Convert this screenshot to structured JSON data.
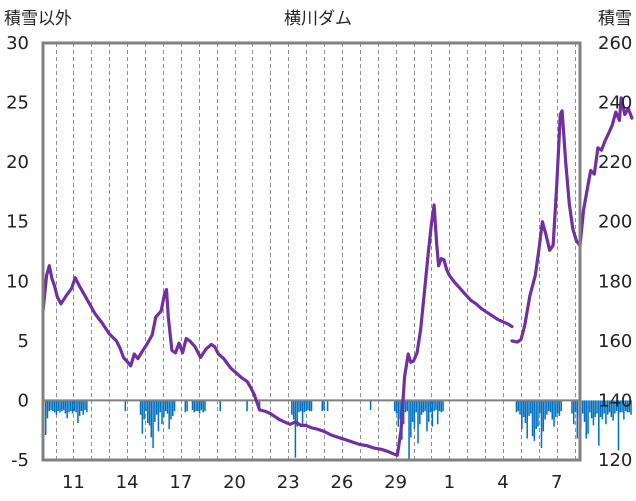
{
  "chart_data": {
    "type": "bar+line",
    "title": "横川ダム",
    "left_axis_label": "積雪以外",
    "right_axis_label": "積雪",
    "ylim_left": [
      -5,
      30
    ],
    "ylim_right": [
      120,
      260
    ],
    "left_ticks": [
      -5,
      0,
      5,
      10,
      15,
      20,
      25,
      30
    ],
    "right_ticks": [
      120,
      140,
      160,
      180,
      200,
      220,
      240,
      260
    ],
    "x_tick_labels": [
      "11",
      "14",
      "17",
      "20",
      "23",
      "26",
      "29",
      "1",
      "4",
      "7"
    ],
    "x_tick_days": [
      2,
      5,
      8,
      11,
      14,
      17,
      20,
      23,
      26,
      29
    ],
    "x_range": [
      0.3,
      30.3
    ],
    "grid": "vertical-dashed",
    "colors": {
      "line": "#7030a0",
      "bars": "#0070c0",
      "frame": "#808080",
      "zero": "#808080",
      "grid": "#909090"
    },
    "line_series": {
      "axis": "left",
      "segments": [
        [
          [
            0.3,
            7.5
          ],
          [
            0.5,
            10.5
          ],
          [
            0.65,
            11.3
          ],
          [
            0.8,
            10.2
          ],
          [
            0.95,
            9.6
          ],
          [
            1.1,
            8.7
          ],
          [
            1.3,
            8.1
          ],
          [
            1.6,
            8.8
          ],
          [
            1.9,
            9.4
          ],
          [
            2.1,
            10.3
          ],
          [
            2.3,
            9.7
          ],
          [
            2.6,
            8.9
          ],
          [
            2.9,
            8.1
          ],
          [
            3.2,
            7.3
          ],
          [
            3.6,
            6.5
          ],
          [
            4.0,
            5.6
          ],
          [
            4.4,
            5.0
          ],
          [
            4.6,
            4.4
          ],
          [
            4.8,
            3.6
          ],
          [
            5.1,
            3.1
          ],
          [
            5.2,
            2.9
          ],
          [
            5.4,
            3.9
          ],
          [
            5.6,
            3.5
          ],
          [
            5.8,
            4.0
          ],
          [
            6.1,
            4.7
          ],
          [
            6.4,
            5.5
          ],
          [
            6.6,
            7.0
          ],
          [
            6.9,
            7.5
          ],
          [
            7.1,
            9.0
          ],
          [
            7.2,
            9.3
          ],
          [
            7.3,
            7.0
          ],
          [
            7.5,
            4.2
          ],
          [
            7.7,
            4.0
          ],
          [
            7.9,
            4.8
          ],
          [
            8.1,
            4.0
          ],
          [
            8.3,
            5.2
          ],
          [
            8.5,
            5.0
          ],
          [
            8.8,
            4.5
          ],
          [
            9.1,
            3.6
          ],
          [
            9.4,
            4.3
          ],
          [
            9.7,
            4.7
          ],
          [
            9.9,
            4.5
          ],
          [
            10.1,
            3.9
          ],
          [
            10.4,
            3.5
          ],
          [
            10.8,
            2.7
          ],
          [
            11.1,
            2.3
          ],
          [
            11.4,
            1.9
          ],
          [
            11.7,
            1.6
          ],
          [
            11.9,
            1.1
          ],
          [
            12.1,
            0.5
          ],
          [
            12.4,
            -0.8
          ],
          [
            12.7,
            -0.9
          ],
          [
            13.0,
            -1.1
          ],
          [
            13.2,
            -1.3
          ],
          [
            13.5,
            -1.6
          ],
          [
            13.8,
            -1.8
          ],
          [
            14.1,
            -2.0
          ],
          [
            14.4,
            -1.8
          ],
          [
            14.7,
            -2.1
          ],
          [
            15.0,
            -2.1
          ],
          [
            15.3,
            -2.3
          ],
          [
            15.6,
            -2.4
          ],
          [
            16.0,
            -2.6
          ],
          [
            16.4,
            -2.9
          ],
          [
            16.8,
            -3.1
          ],
          [
            17.2,
            -3.3
          ],
          [
            17.6,
            -3.5
          ],
          [
            18.0,
            -3.7
          ],
          [
            18.4,
            -3.8
          ],
          [
            18.8,
            -4.0
          ],
          [
            19.2,
            -4.1
          ],
          [
            19.6,
            -4.3
          ],
          [
            19.9,
            -4.5
          ],
          [
            20.1,
            -4.6
          ],
          [
            20.3,
            -2.5
          ],
          [
            20.5,
            2.0
          ],
          [
            20.7,
            3.9
          ],
          [
            20.85,
            3.2
          ],
          [
            21.0,
            3.3
          ],
          [
            21.2,
            4.0
          ],
          [
            21.4,
            6.0
          ],
          [
            21.6,
            9.0
          ],
          [
            21.8,
            12.0
          ],
          [
            22.0,
            14.8
          ],
          [
            22.15,
            16.4
          ],
          [
            22.3,
            13.0
          ],
          [
            22.4,
            11.3
          ],
          [
            22.55,
            11.9
          ],
          [
            22.7,
            11.8
          ],
          [
            22.85,
            11.0
          ],
          [
            23.0,
            10.5
          ],
          [
            23.3,
            9.9
          ],
          [
            23.6,
            9.4
          ],
          [
            23.9,
            8.9
          ],
          [
            24.2,
            8.4
          ],
          [
            24.5,
            8.1
          ],
          [
            24.8,
            7.7
          ],
          [
            25.1,
            7.4
          ],
          [
            25.4,
            7.1
          ],
          [
            25.7,
            6.8
          ],
          [
            26.0,
            6.6
          ],
          [
            26.3,
            6.4
          ],
          [
            26.5,
            6.2
          ]
        ],
        [
          [
            26.5,
            5.0
          ],
          [
            26.8,
            4.9
          ],
          [
            27.0,
            5.1
          ],
          [
            27.2,
            6.2
          ],
          [
            27.5,
            8.8
          ],
          [
            27.8,
            10.5
          ],
          [
            28.0,
            12.6
          ],
          [
            28.2,
            15.0
          ],
          [
            28.4,
            13.9
          ],
          [
            28.6,
            12.6
          ],
          [
            28.8,
            13.0
          ],
          [
            29.0,
            18.0
          ],
          [
            29.2,
            24.0
          ],
          [
            29.3,
            24.3
          ],
          [
            29.5,
            20.0
          ],
          [
            29.7,
            16.5
          ],
          [
            29.9,
            14.4
          ],
          [
            30.1,
            13.4
          ],
          [
            30.3,
            13.0
          ],
          [
            30.5,
            16.0
          ],
          [
            30.7,
            17.7
          ],
          [
            30.9,
            19.3
          ],
          [
            31.1,
            19.0
          ],
          [
            31.3,
            21.2
          ],
          [
            31.5,
            21.0
          ],
          [
            31.7,
            21.8
          ],
          [
            31.9,
            22.4
          ],
          [
            32.1,
            23.1
          ],
          [
            32.3,
            24.2
          ],
          [
            32.5,
            23.5
          ],
          [
            32.6,
            25.4
          ],
          [
            32.8,
            24.0
          ],
          [
            33.0,
            24.5
          ],
          [
            33.2,
            23.7
          ]
        ]
      ]
    },
    "bar_series": {
      "axis": "left",
      "start_x": 0.45,
      "step": 0.1,
      "bar_width_days": 0.085,
      "runs": [
        [
          0.45,
          [
            -2.9,
            -1.5,
            -0.9,
            -0.8,
            -0.9,
            -1.0,
            -1.2,
            -0.9,
            -1.0,
            -0.9,
            -0.8,
            -1.1,
            -1.5,
            -1.0,
            -0.9,
            -1.1,
            -0.9,
            -1.0,
            -1.9,
            -1.3,
            -0.9,
            -1.2,
            -0.8,
            -1.0
          ]
        ],
        [
          4.9,
          [
            -0.9
          ]
        ],
        [
          5.75,
          [
            -1.2,
            -2.8,
            -1.6,
            -0.9,
            -1.9,
            -2.1,
            -3.1,
            -4.0,
            -1.8,
            -1.2,
            -2.6,
            -1.0,
            -2.0,
            -1.4,
            -0.9,
            -1.1,
            -2.4,
            -1.6,
            -1.3,
            -0.9
          ]
        ],
        [
          8.25,
          [
            -1.0,
            -0.9
          ]
        ],
        [
          8.65,
          [
            -0.8,
            -1.0,
            -0.9,
            -0.9,
            -1.1,
            -0.8,
            -1.0,
            -0.9
          ]
        ],
        [
          10.2,
          [
            -0.9
          ]
        ],
        [
          11.7,
          [
            -0.9
          ]
        ],
        [
          12.4,
          [
            -0.8
          ]
        ],
        [
          14.2,
          [
            -1.2,
            -1.6,
            -4.8,
            -2.2,
            -1.0,
            -0.9,
            -2.1,
            -1.0,
            -0.9,
            -0.8,
            -0.9,
            -0.9
          ]
        ],
        [
          15.9,
          [
            -0.9,
            -0.8
          ]
        ],
        [
          16.2,
          [
            -0.9
          ]
        ],
        [
          18.6,
          [
            -0.8
          ]
        ],
        [
          19.95,
          [
            -0.9,
            -1.1,
            -2.2,
            -1.6,
            -3.3,
            -2.0,
            -1.0,
            -0.9,
            -4.9,
            -3.1,
            -1.8,
            -2.4,
            -1.0,
            -3.6,
            -2.0,
            -1.2,
            -1.0,
            -0.9,
            -2.6,
            -1.8,
            -1.0,
            -2.2,
            -0.9,
            -0.8,
            -2.0,
            -0.9,
            -1.0,
            -0.9
          ]
        ],
        [
          26.75,
          [
            -1.0,
            -0.9,
            -1.2,
            -2.4,
            -1.4,
            -1.9,
            -3.2,
            -1.3,
            -1.1,
            -3.0,
            -3.4,
            -2.4,
            -2.2,
            -1.1,
            -4.0,
            -2.6,
            -1.6,
            -1.2,
            -0.9,
            -1.0,
            -1.6,
            -2.2,
            -1.4,
            -1.1,
            -1.3,
            -0.9
          ]
        ],
        [
          29.85,
          [
            -1.1,
            -2.0,
            -1.0,
            -3.2,
            -1.4,
            -2.3,
            -1.1,
            -1.8,
            -3.2,
            -2.8,
            -1.0,
            -1.5,
            -2.1,
            -1.4,
            -1.1,
            -3.8,
            -1.4,
            -1.6,
            -1.1,
            -2.0,
            -1.2,
            -1.0,
            -1.4,
            -1.7,
            -1.1,
            -0.9,
            -4.2,
            -1.0,
            -1.0,
            -1.6,
            -0.9,
            -1.0,
            -1.0,
            -1.2
          ]
        ]
      ]
    }
  }
}
